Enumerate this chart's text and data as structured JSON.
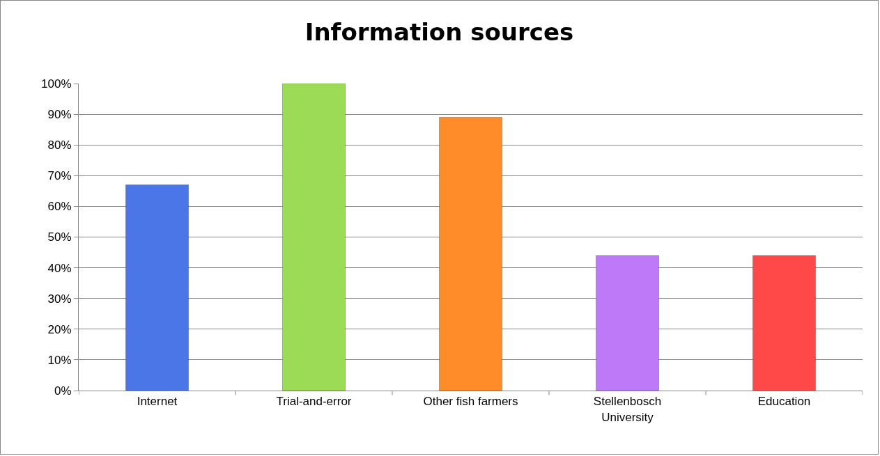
{
  "chart_data": {
    "type": "bar",
    "title": "Information sources",
    "categories": [
      "Internet",
      "Trial-and-error",
      "Other fish farmers",
      "Stellenbosch University",
      "Education"
    ],
    "values": [
      67,
      100,
      89,
      44,
      44
    ],
    "colors": [
      "#4a76e8",
      "#9bdb55",
      "#ff8c28",
      "#bd79f7",
      "#ff4848"
    ],
    "ylim": [
      0,
      100
    ],
    "yticks": [
      {
        "value": 0,
        "label": "0%"
      },
      {
        "value": 10,
        "label": "10%"
      },
      {
        "value": 20,
        "label": "20%"
      },
      {
        "value": 30,
        "label": "30%"
      },
      {
        "value": 40,
        "label": "40%"
      },
      {
        "value": 50,
        "label": "50%"
      },
      {
        "value": 60,
        "label": "60%"
      },
      {
        "value": 70,
        "label": "70%"
      },
      {
        "value": 80,
        "label": "80%"
      },
      {
        "value": 90,
        "label": "90%"
      },
      {
        "value": 100,
        "label": "100%"
      }
    ],
    "grid": "y"
  }
}
